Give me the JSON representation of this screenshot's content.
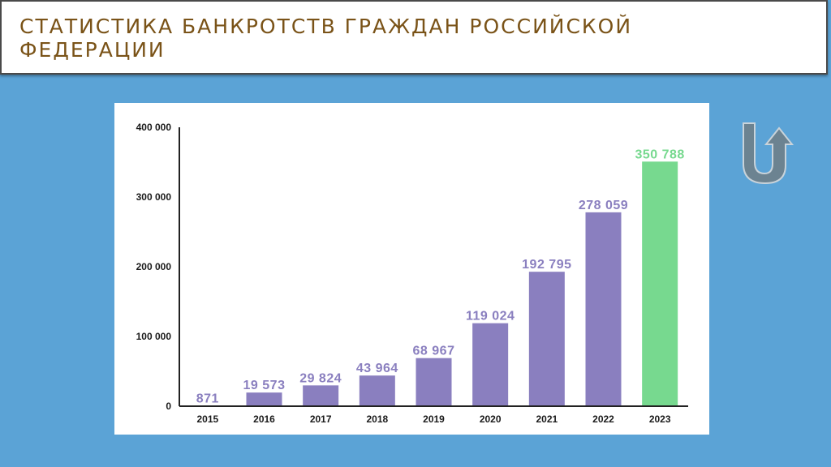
{
  "slide": {
    "title": "СТАТИСТИКА БАНКРОТСТВ ГРАЖДАН РОССИЙСКОЙ ФЕДЕРАЦИИ"
  },
  "decor": {
    "arrow_icon": "u-turn-up-arrow-icon",
    "arrow_color": "#6c8391"
  },
  "chart_data": {
    "type": "bar",
    "title": "",
    "xlabel": "",
    "ylabel": "",
    "categories": [
      "2015",
      "2016",
      "2017",
      "2018",
      "2019",
      "2020",
      "2021",
      "2022",
      "2023"
    ],
    "values": [
      871,
      19573,
      29824,
      43964,
      68967,
      119024,
      192795,
      278059,
      350788
    ],
    "value_labels": [
      "871",
      "19 573",
      "29 824",
      "43 964",
      "68 967",
      "119 024",
      "192 795",
      "278 059",
      "350 788"
    ],
    "ylim": [
      0,
      400000
    ],
    "yticks": [
      0,
      100000,
      200000,
      300000,
      400000
    ],
    "ytick_labels": [
      "0",
      "100 000",
      "200 000",
      "300 000",
      "400 000"
    ],
    "grid": false,
    "legend": "none",
    "colors": {
      "bar": "#8a7fbf",
      "highlight_bar": "#77d98f",
      "label": "#8a7fbf",
      "highlight_label": "#77d98f",
      "highlight_index": 8
    }
  }
}
